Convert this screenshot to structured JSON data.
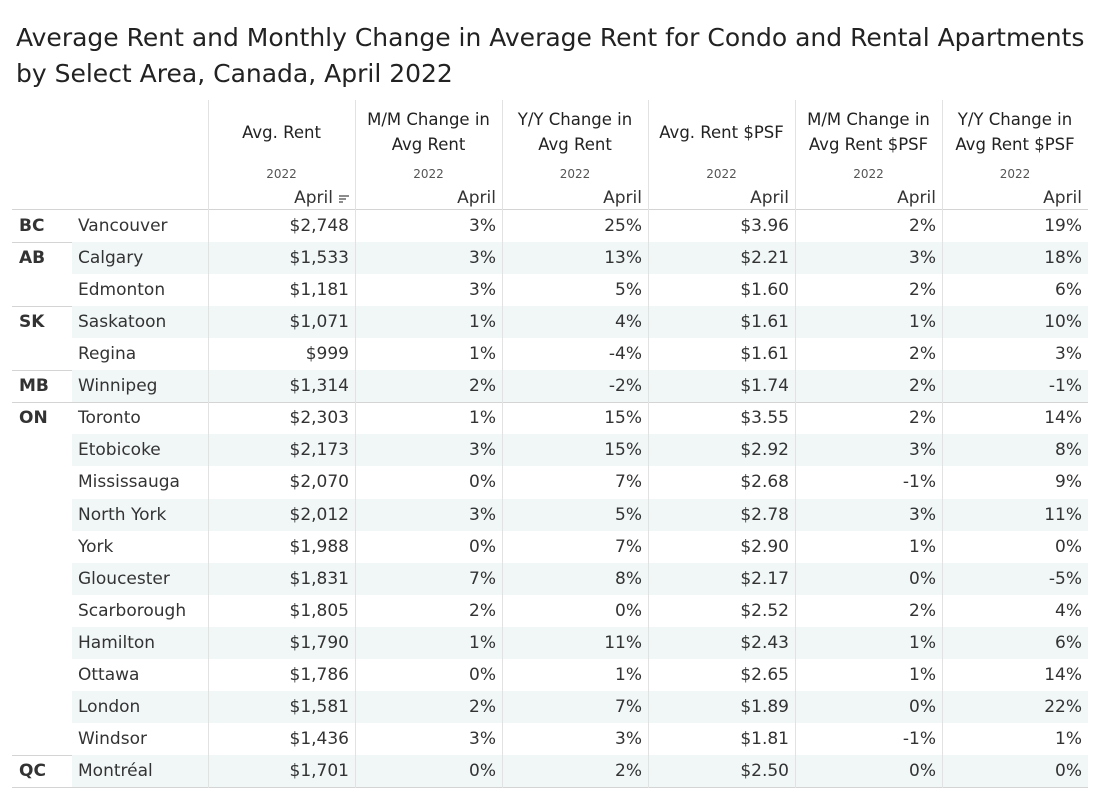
{
  "title": "Average Rent and Monthly Change in Average Rent for Condo and Rental Apartments by Select Area, Canada, April 2022",
  "columns": [
    {
      "header_lines": [
        "Avg. Rent"
      ],
      "year": "2022",
      "month": "April"
    },
    {
      "header_lines": [
        "M/M Change in",
        "Avg Rent"
      ],
      "year": "2022",
      "month": "April"
    },
    {
      "header_lines": [
        "Y/Y Change in",
        "Avg Rent"
      ],
      "year": "2022",
      "month": "April"
    },
    {
      "header_lines": [
        "Avg. Rent $PSF"
      ],
      "year": "2022",
      "month": "April"
    },
    {
      "header_lines": [
        "M/M Change in",
        "Avg Rent $PSF"
      ],
      "year": "2022",
      "month": "April"
    },
    {
      "header_lines": [
        "Y/Y Change in",
        "Avg Rent $PSF"
      ],
      "year": "2022",
      "month": "April"
    }
  ],
  "groups": [
    {
      "province": "BC",
      "rows": [
        [
          "Vancouver",
          "$2,748",
          "3%",
          "25%",
          "$3.96",
          "2%",
          "19%"
        ]
      ]
    },
    {
      "province": "AB",
      "rows": [
        [
          "Calgary",
          "$1,533",
          "3%",
          "13%",
          "$2.21",
          "3%",
          "18%"
        ],
        [
          "Edmonton",
          "$1,181",
          "3%",
          "5%",
          "$1.60",
          "2%",
          "6%"
        ]
      ]
    },
    {
      "province": "SK",
      "rows": [
        [
          "Saskatoon",
          "$1,071",
          "1%",
          "4%",
          "$1.61",
          "1%",
          "10%"
        ],
        [
          "Regina",
          "$999",
          "1%",
          "-4%",
          "$1.61",
          "2%",
          "3%"
        ]
      ]
    },
    {
      "province": "MB",
      "rows": [
        [
          "Winnipeg",
          "$1,314",
          "2%",
          "-2%",
          "$1.74",
          "2%",
          "-1%"
        ]
      ]
    },
    {
      "province": "ON",
      "rows": [
        [
          "Toronto",
          "$2,303",
          "1%",
          "15%",
          "$3.55",
          "2%",
          "14%"
        ],
        [
          "Etobicoke",
          "$2,173",
          "3%",
          "15%",
          "$2.92",
          "3%",
          "8%"
        ],
        [
          "Mississauga",
          "$2,070",
          "0%",
          "7%",
          "$2.68",
          "-1%",
          "9%"
        ],
        [
          "North York",
          "$2,012",
          "3%",
          "5%",
          "$2.78",
          "3%",
          "11%"
        ],
        [
          "York",
          "$1,988",
          "0%",
          "7%",
          "$2.90",
          "1%",
          "0%"
        ],
        [
          "Gloucester",
          "$1,831",
          "7%",
          "8%",
          "$2.17",
          "0%",
          "-5%"
        ],
        [
          "Scarborough",
          "$1,805",
          "2%",
          "0%",
          "$2.52",
          "2%",
          "4%"
        ],
        [
          "Hamilton",
          "$1,790",
          "1%",
          "11%",
          "$2.43",
          "1%",
          "6%"
        ],
        [
          "Ottawa",
          "$1,786",
          "0%",
          "1%",
          "$2.65",
          "1%",
          "14%"
        ],
        [
          "London",
          "$1,581",
          "2%",
          "7%",
          "$1.89",
          "0%",
          "22%"
        ],
        [
          "Windsor",
          "$1,436",
          "3%",
          "3%",
          "$1.81",
          "-1%",
          "1%"
        ]
      ]
    },
    {
      "province": "QC",
      "rows": [
        [
          "Montréal",
          "$1,701",
          "0%",
          "2%",
          "$2.50",
          "0%",
          "0%"
        ]
      ]
    }
  ]
}
